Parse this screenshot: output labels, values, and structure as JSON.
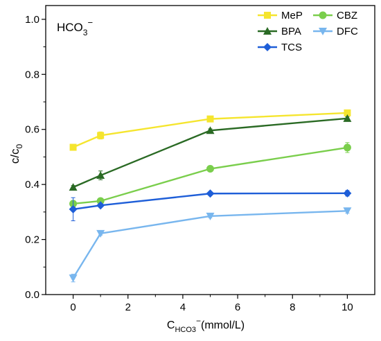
{
  "chart_data": {
    "type": "line",
    "annotation": {
      "base": "HCO",
      "sub": "3",
      "sup": "−"
    },
    "xlabel": {
      "base": "C",
      "sub": "HCO3",
      "sup": "−",
      "tail": "(mmol/L)"
    },
    "ylabel": {
      "base": "c/c",
      "sub": "0"
    },
    "xlim": [
      -1.0,
      11.0
    ],
    "ylim": [
      0.0,
      1.05
    ],
    "xticks": [
      0,
      2,
      4,
      6,
      8,
      10
    ],
    "yticks": [
      0.0,
      0.2,
      0.4,
      0.6,
      0.8,
      1.0
    ],
    "xtick_labels": [
      "0",
      "2",
      "4",
      "6",
      "8",
      "10"
    ],
    "ytick_labels": [
      "0.0",
      "0.2",
      "0.4",
      "0.6",
      "0.8",
      "1.0"
    ],
    "grid": false,
    "legend_position": "top-right",
    "x": [
      0,
      1,
      5,
      10
    ],
    "series": [
      {
        "name": "MeP",
        "color": "#F5E52E",
        "marker": "square",
        "values": [
          0.535,
          0.578,
          0.638,
          0.66
        ],
        "errors": [
          0.008,
          0.013,
          0.006,
          0.006
        ]
      },
      {
        "name": "CBZ",
        "color": "#7ACE4C",
        "marker": "circle",
        "values": [
          0.33,
          0.34,
          0.457,
          0.534
        ],
        "errors": [
          0.012,
          0.008,
          0.01,
          0.018
        ]
      },
      {
        "name": "BPA",
        "color": "#2A6A24",
        "marker": "triangle-up",
        "values": [
          0.39,
          0.433,
          0.596,
          0.64
        ],
        "errors": [
          0.006,
          0.016,
          0.006,
          0.006
        ]
      },
      {
        "name": "DFC",
        "color": "#78B6EE",
        "marker": "triangle-down",
        "values": [
          0.06,
          0.222,
          0.285,
          0.304
        ],
        "errors": [
          0.014,
          0.006,
          0.006,
          0.008
        ]
      },
      {
        "name": "TCS",
        "color": "#1E5ED8",
        "marker": "diamond",
        "values": [
          0.31,
          0.324,
          0.367,
          0.368
        ],
        "errors": [
          0.042,
          0.006,
          0.006,
          0.01
        ]
      }
    ]
  }
}
